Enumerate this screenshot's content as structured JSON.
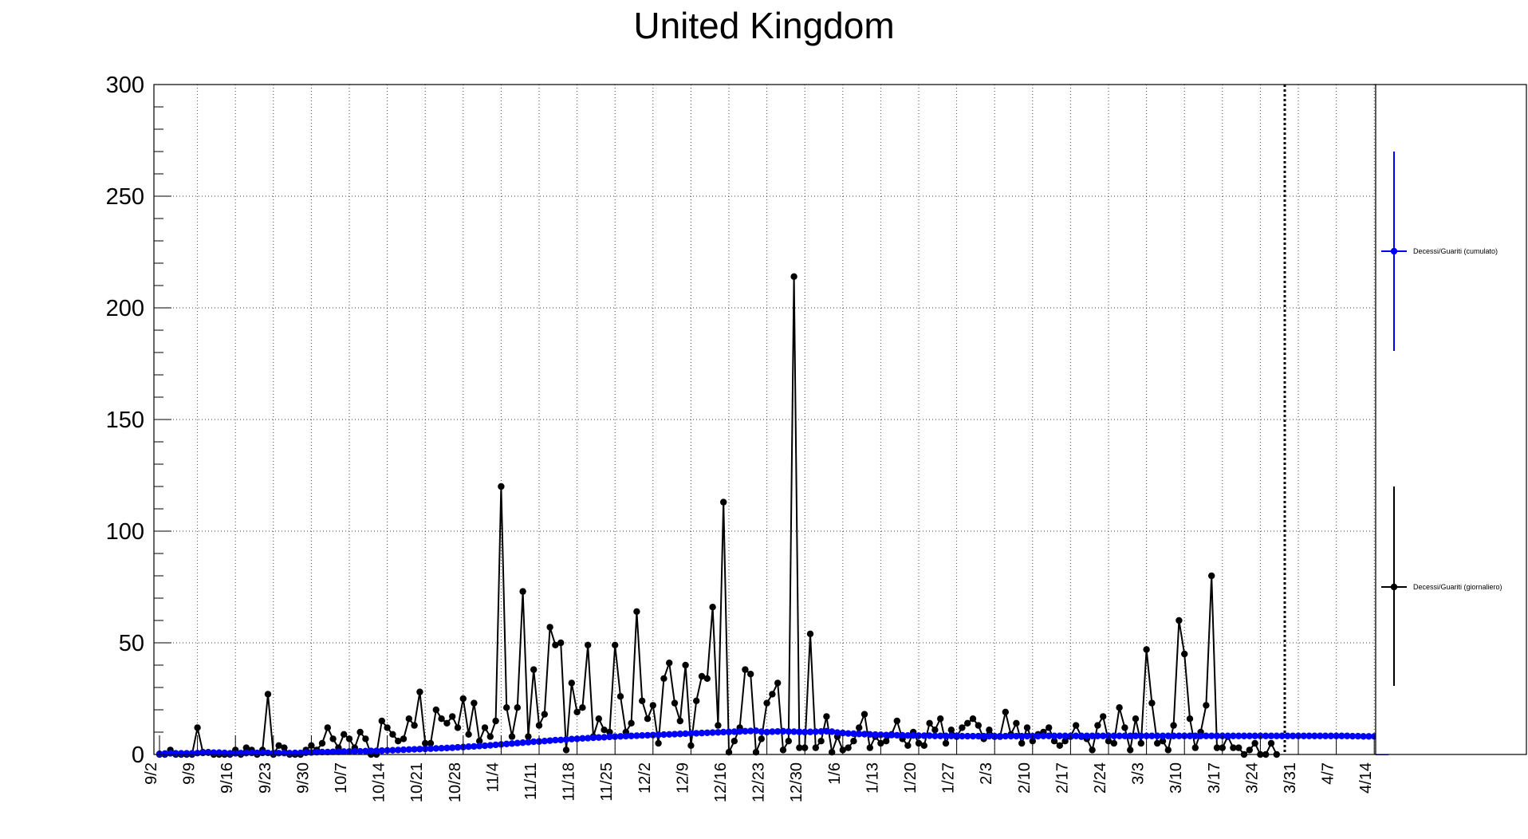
{
  "chart_data": {
    "type": "line",
    "title": "United Kingdom",
    "xlabel": "",
    "ylabel": "",
    "ylim": [
      0,
      300
    ],
    "yticks": [
      0,
      50,
      100,
      150,
      200,
      250,
      300
    ],
    "grid": true,
    "legend_position": "right",
    "xtick_labels": [
      "9/2",
      "9/9",
      "9/16",
      "9/23",
      "9/30",
      "10/7",
      "10/14",
      "10/21",
      "10/28",
      "11/4",
      "11/11",
      "11/18",
      "11/25",
      "12/2",
      "12/9",
      "12/16",
      "12/23",
      "12/30",
      "1/6",
      "1/13",
      "1/20",
      "1/27",
      "2/3",
      "2/10",
      "2/17",
      "2/24",
      "3/3",
      "3/10",
      "3/17",
      "3/24",
      "3/31",
      "4/7",
      "4/14"
    ],
    "days_total": 230,
    "series": [
      {
        "name": "Decessi/Guariti (cumulato)",
        "color": "#0000ff",
        "values": [
          0.3,
          0.4,
          0.5,
          0.5,
          0.5,
          0.5,
          0.5,
          0.6,
          0.7,
          0.8,
          0.8,
          0.8,
          0.7,
          0.5,
          0.5,
          0.6,
          0.6,
          0.7,
          0.7,
          0.7,
          0.7,
          0.6,
          0.6,
          0.6,
          0.6,
          0.7,
          0.7,
          0.8,
          0.9,
          1.0,
          1.1,
          1.1,
          1.2,
          1.2,
          1.3,
          1.3,
          1.4,
          1.4,
          1.5,
          1.6,
          1.6,
          1.7,
          1.8,
          1.9,
          2.0,
          2.1,
          2.2,
          2.3,
          2.4,
          2.5,
          2.6,
          2.7,
          2.8,
          2.9,
          3.0,
          3.2,
          3.3,
          3.5,
          3.6,
          3.8,
          3.9,
          4.1,
          4.3,
          4.5,
          4.7,
          4.9,
          5.1,
          5.3,
          5.5,
          5.7,
          5.8,
          6.0,
          6.2,
          6.4,
          6.5,
          6.7,
          6.9,
          7.0,
          7.2,
          7.3,
          7.5,
          7.6,
          7.7,
          7.9,
          8.0,
          8.1,
          8.2,
          8.3,
          8.4,
          8.5,
          8.6,
          8.7,
          8.8,
          8.9,
          9.0,
          9.1,
          9.2,
          9.3,
          9.4,
          9.5,
          9.6,
          9.7,
          9.8,
          9.9,
          10.0,
          10.1,
          10.2,
          10.3,
          10.4,
          10.5,
          10.6,
          10.2,
          10.0,
          10.2,
          10.3,
          10.4,
          10.3,
          10.2,
          10.1,
          10.0,
          10.1,
          10.2,
          10.3,
          10.4,
          10.2,
          9.8,
          9.6,
          9.4,
          9.3,
          9.2,
          9.1,
          9.0,
          8.9,
          8.8,
          8.7,
          8.7,
          8.6,
          8.6,
          8.5,
          8.5,
          8.4,
          8.4,
          8.4,
          8.3,
          8.3,
          8.3,
          8.3,
          8.3,
          8.2,
          8.2,
          8.2,
          8.2,
          8.2,
          8.2,
          8.2,
          8.2,
          8.2,
          8.2,
          8.2,
          8.2,
          8.2,
          8.2,
          8.2,
          8.3,
          8.3,
          8.3,
          8.3,
          8.3,
          8.3,
          8.3,
          8.3,
          8.3,
          8.3,
          8.3,
          8.3,
          8.3,
          8.3,
          8.3,
          8.3,
          8.3,
          8.3,
          8.3,
          8.3,
          8.3,
          8.3,
          8.3,
          8.3,
          8.3,
          8.3,
          8.3,
          8.3,
          8.3,
          8.3,
          8.3,
          8.3,
          8.3,
          8.3,
          8.3,
          8.3,
          8.3,
          8.3,
          8.3,
          8.3,
          8.3,
          8.3,
          8.3,
          8.3,
          8.3,
          8.3,
          8.3,
          8.3,
          8.3,
          8.3,
          8.3,
          8.3,
          8.3,
          8.3,
          8.3,
          8.3,
          8.3,
          8.2,
          8.2,
          8.1,
          8.1,
          8.1,
          8.1,
          8.1
        ]
      },
      {
        "name": "Decessi/Guariti (giornaliero)",
        "color": "#000000",
        "values": [
          0,
          0,
          2,
          0,
          0,
          0,
          0,
          12,
          1,
          1,
          0,
          0,
          0,
          0,
          2,
          0,
          3,
          2,
          0,
          2,
          27,
          0,
          4,
          3,
          0,
          0,
          0,
          2,
          4,
          2,
          5,
          12,
          7,
          3,
          9,
          7,
          3,
          10,
          7,
          0,
          0,
          15,
          12,
          9,
          6,
          7,
          16,
          13,
          28,
          5,
          5,
          20,
          16,
          14,
          17,
          12,
          25,
          9,
          23,
          6,
          12,
          8,
          15,
          120,
          21,
          8,
          21,
          73,
          8,
          38,
          13,
          18,
          57,
          49,
          50,
          2,
          32,
          19,
          21,
          49,
          8,
          16,
          11,
          10,
          49,
          26,
          10,
          14,
          64,
          24,
          16,
          22,
          5,
          34,
          41,
          23,
          15,
          40,
          4,
          24,
          35,
          34,
          66,
          13,
          113,
          1,
          6,
          12,
          38,
          36,
          1,
          7,
          23,
          27,
          32,
          2,
          6,
          214,
          3,
          3,
          54,
          3,
          6,
          17,
          1,
          8,
          2,
          3,
          6,
          12,
          18,
          3,
          8,
          5,
          6,
          9,
          15,
          7,
          4,
          10,
          5,
          4,
          14,
          11,
          16,
          5,
          11,
          8,
          12,
          14,
          16,
          13,
          7,
          11,
          8,
          8,
          19,
          9,
          14,
          5,
          12,
          6,
          9,
          10,
          12,
          6,
          4,
          6,
          8,
          13,
          8,
          7,
          2,
          13,
          17,
          6,
          5,
          21,
          12,
          2,
          16,
          5,
          47,
          23,
          5,
          6,
          2,
          13,
          60,
          45,
          16,
          3,
          10,
          22,
          80,
          3,
          3,
          8,
          3,
          3,
          0,
          2,
          5,
          0,
          0,
          5,
          0
        ],
        "last_day_index": 207
      }
    ],
    "annotations": [
      {
        "type": "vertical-dashed-line",
        "x_day": 207.5
      }
    ]
  }
}
